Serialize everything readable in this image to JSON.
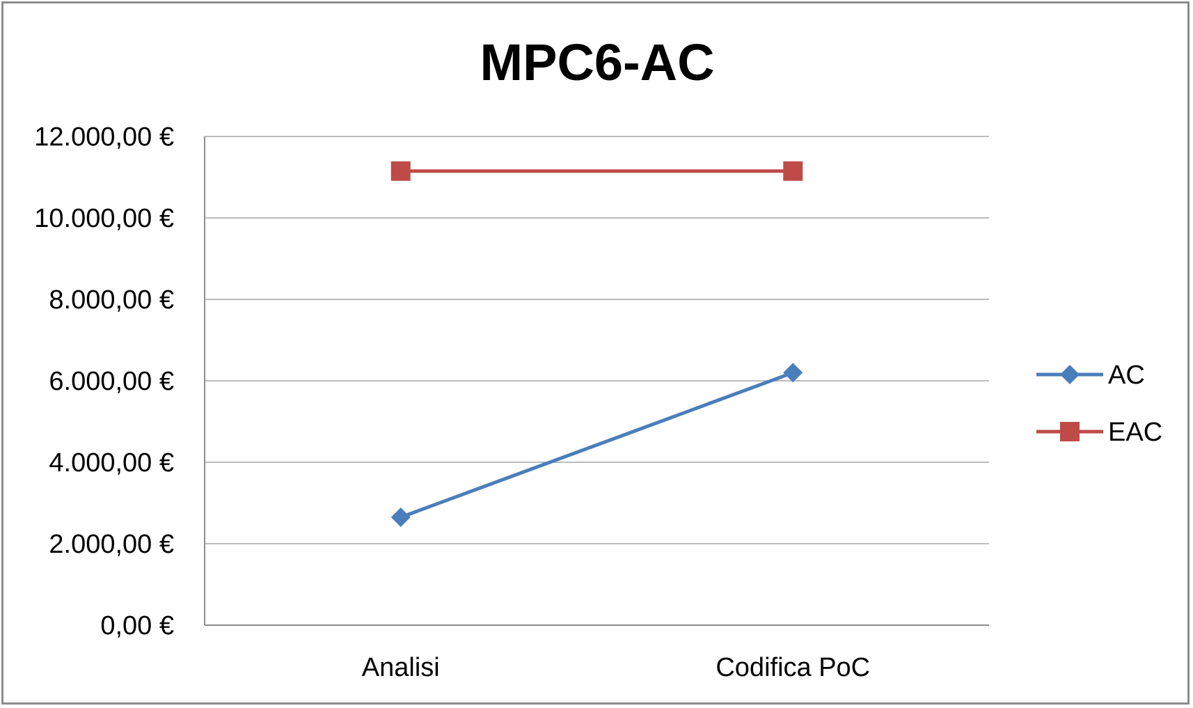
{
  "chart_data": {
    "type": "line",
    "title": "MPC6-AC",
    "categories": [
      "Analisi",
      "Codifica PoC"
    ],
    "y_ticks": [
      "0,00 €",
      "2.000,00 €",
      "4.000,00 €",
      "6.000,00 €",
      "8.000,00 €",
      "10.000,00 €",
      "12.000,00 €"
    ],
    "ylim": [
      0,
      12000
    ],
    "y_step": 2000,
    "grid": true,
    "legend_position": "right",
    "series": [
      {
        "name": "AC",
        "values": [
          2650,
          6200
        ],
        "color": "#4a7ebb",
        "marker": "diamond"
      },
      {
        "name": "EAC",
        "values": [
          11150,
          11150
        ],
        "color": "#be4b48",
        "marker": "square"
      }
    ]
  }
}
